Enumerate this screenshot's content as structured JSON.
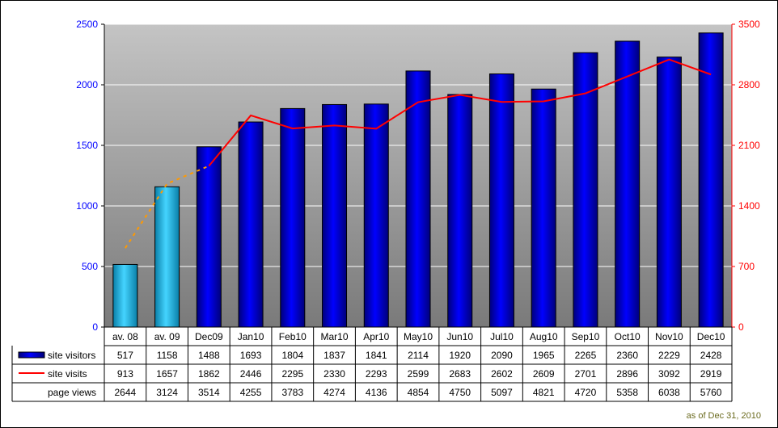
{
  "chart_data": {
    "type": "bar",
    "categories": [
      "av. 08",
      "av. 09",
      "Dec09",
      "Jan10",
      "Feb10",
      "Mar10",
      "Apr10",
      "May10",
      "Jun10",
      "Jul10",
      "Aug10",
      "Sep10",
      "Oct10",
      "Nov10",
      "Dec10"
    ],
    "series": [
      {
        "name": "site visitors",
        "type": "bar",
        "axis": "left",
        "values": [
          517,
          1158,
          1488,
          1693,
          1804,
          1837,
          1841,
          2114,
          1920,
          2090,
          1965,
          2265,
          2360,
          2229,
          2428
        ]
      },
      {
        "name": "site visits",
        "type": "line",
        "axis": "right",
        "values": [
          913,
          1657,
          1862,
          2446,
          2295,
          2330,
          2293,
          2599,
          2683,
          2602,
          2609,
          2701,
          2896,
          3092,
          2919
        ]
      },
      {
        "name": "page views",
        "type": "table-only",
        "values": [
          2644,
          3124,
          3514,
          4255,
          3783,
          4274,
          4136,
          4854,
          4750,
          5097,
          4821,
          4720,
          5358,
          6038,
          5760
        ]
      }
    ],
    "y_left": {
      "min": 0,
      "max": 2500,
      "ticks": [
        0,
        500,
        1000,
        1500,
        2000,
        2500
      ],
      "color": "#0000ff"
    },
    "y_right": {
      "min": 0,
      "max": 3500,
      "ticks": [
        0,
        700,
        1400,
        2100,
        2800,
        3500
      ],
      "color": "#ff0000"
    },
    "grid": true,
    "legend": "data-table-bottom",
    "colors": {
      "bar_main": "#0000dd",
      "bar_avg": "#33c5ee",
      "line_visits": "#ff0000",
      "line_avg": "#ff9900"
    }
  },
  "footnote": "as of Dec 31, 2010"
}
